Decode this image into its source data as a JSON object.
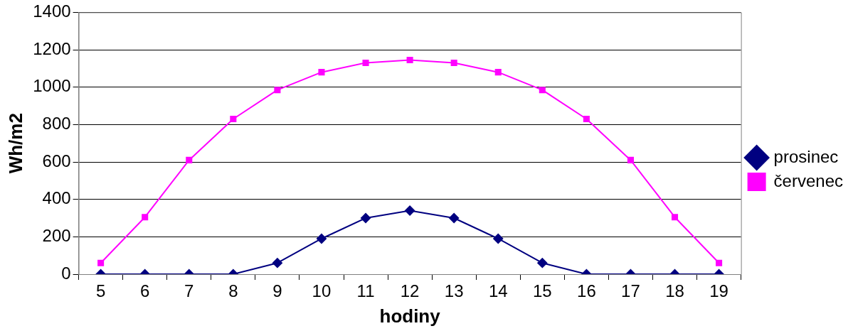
{
  "chart_data": {
    "type": "line",
    "xlabel": "hodiny",
    "ylabel": "Wh/m2",
    "categories": [
      "5",
      "6",
      "7",
      "8",
      "9",
      "10",
      "11",
      "12",
      "13",
      "14",
      "15",
      "16",
      "17",
      "18",
      "19"
    ],
    "series": [
      {
        "name": "prosinec",
        "color": "#000080",
        "marker": "diamond",
        "values": [
          0,
          0,
          0,
          0,
          60,
          190,
          300,
          340,
          300,
          190,
          60,
          0,
          0,
          0,
          0
        ]
      },
      {
        "name": "červenec",
        "color": "#ff00ff",
        "marker": "square",
        "values": [
          60,
          305,
          610,
          830,
          985,
          1080,
          1130,
          1145,
          1130,
          1080,
          985,
          830,
          610,
          305,
          60
        ]
      }
    ],
    "ylim": [
      0,
      1400
    ],
    "yticks": [
      0,
      200,
      400,
      600,
      800,
      1000,
      1200,
      1400
    ],
    "grid": "y",
    "legend": "right"
  }
}
